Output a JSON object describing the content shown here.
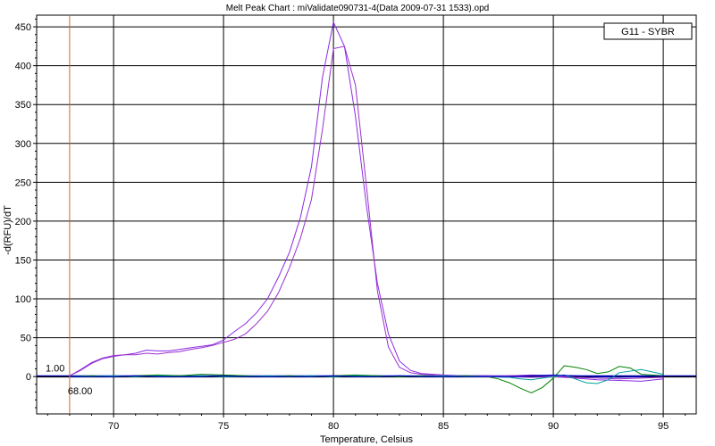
{
  "chart_data": {
    "type": "line",
    "title": "Melt Peak Chart : miValidate090731-4(Data 2009-07-31 1533).opd",
    "xlabel": "Temperature, Celsius",
    "ylabel": "-d(RFU)/dT",
    "xlim": [
      66.5,
      96.5
    ],
    "ylim": [
      -48,
      465
    ],
    "x_ticks": [
      70,
      75,
      80,
      85,
      90,
      95
    ],
    "y_ticks": [
      0,
      50,
      100,
      150,
      200,
      250,
      300,
      350,
      400,
      450
    ],
    "grid": true,
    "legend": {
      "placement": "top-right",
      "entries": [
        "G11 - SYBR"
      ]
    },
    "threshold": {
      "value": 1.0,
      "label": "1.00"
    },
    "marker": {
      "x": 68.0,
      "label": "68.00"
    },
    "series": [
      {
        "color": "#8a2be2",
        "x": [
          68,
          68.5,
          69,
          69.5,
          70,
          70.5,
          71,
          71.5,
          72,
          72.5,
          73,
          73.5,
          74,
          74.5,
          75,
          75.5,
          76,
          76.5,
          77,
          77.5,
          78,
          78.5,
          79,
          79.5,
          80,
          80.5,
          81,
          81.5,
          82,
          82.5,
          83,
          83.5,
          84,
          85,
          86,
          87,
          88,
          89,
          90,
          91,
          92,
          93,
          94,
          95
        ],
        "y": [
          1,
          8,
          17,
          23,
          26,
          28,
          30,
          34,
          33,
          33,
          35,
          37,
          39,
          41,
          47,
          58,
          68,
          82,
          100,
          128,
          160,
          205,
          270,
          385,
          456,
          425,
          335,
          220,
          120,
          55,
          20,
          8,
          4,
          2,
          1,
          1,
          0,
          -1,
          0,
          -2,
          -4,
          -5,
          -6,
          -3
        ]
      },
      {
        "color": "#9932cc",
        "x": [
          68,
          68.5,
          69,
          69.5,
          70,
          70.5,
          71,
          71.5,
          72,
          72.5,
          73,
          73.5,
          74,
          74.5,
          75,
          75.5,
          76,
          76.5,
          77,
          77.5,
          78,
          78.5,
          79,
          79.5,
          80,
          80.5,
          81,
          81.5,
          82,
          82.5,
          83,
          83.5,
          84,
          85,
          86,
          87,
          88,
          89,
          90,
          91,
          92,
          93,
          94,
          95
        ],
        "y": [
          1,
          9,
          18,
          24,
          27,
          28,
          28,
          30,
          29,
          31,
          32,
          35,
          37,
          40,
          44,
          48,
          55,
          68,
          84,
          108,
          140,
          178,
          228,
          318,
          422,
          425,
          375,
          245,
          110,
          38,
          12,
          5,
          3,
          1,
          0,
          0,
          1,
          2,
          1,
          -1,
          -2,
          -3,
          -2,
          -1
        ]
      },
      {
        "color": "#008000",
        "x": [
          68,
          69,
          70,
          71,
          72,
          73,
          74,
          75,
          76,
          77,
          78,
          79,
          80,
          81,
          82,
          83,
          84,
          85,
          86,
          87,
          87.5,
          88,
          88.5,
          89,
          89.5,
          90,
          90.5,
          91,
          91.5,
          92,
          92.5,
          93,
          93.5,
          94,
          95
        ],
        "y": [
          0,
          1,
          0,
          1,
          2,
          1,
          3,
          2,
          1,
          0,
          1,
          0,
          1,
          2,
          1,
          0,
          1,
          0,
          1,
          0,
          -3,
          -8,
          -15,
          -21,
          -14,
          -2,
          14,
          12,
          9,
          4,
          6,
          13,
          11,
          3,
          1
        ]
      },
      {
        "color": "#00a0a0",
        "x": [
          68,
          69,
          70,
          71,
          72,
          73,
          74,
          75,
          76,
          77,
          78,
          79,
          80,
          81,
          82,
          83,
          84,
          85,
          86,
          87,
          88,
          88.5,
          89,
          89.5,
          90,
          90.5,
          91,
          91.5,
          92,
          92.5,
          93,
          94,
          95
        ],
        "y": [
          0,
          0,
          1,
          0,
          1,
          0,
          1,
          0,
          0,
          1,
          0,
          1,
          0,
          1,
          0,
          1,
          0,
          1,
          0,
          0,
          -1,
          -3,
          -4,
          -2,
          0,
          2,
          -3,
          -8,
          -9,
          -4,
          5,
          9,
          3
        ]
      },
      {
        "color": "#0000cd",
        "x": [
          68,
          69,
          70,
          71,
          72,
          73,
          74,
          75,
          76,
          77,
          78,
          79,
          80,
          81,
          82,
          83,
          84,
          85,
          86,
          87,
          88,
          89,
          90,
          91,
          92,
          93,
          94,
          95
        ],
        "y": [
          0,
          0,
          0,
          1,
          0,
          0,
          0,
          1,
          0,
          0,
          0,
          0,
          1,
          0,
          0,
          1,
          0,
          0,
          0,
          0,
          0,
          1,
          2,
          1,
          0,
          -1,
          0,
          1
        ]
      }
    ]
  }
}
